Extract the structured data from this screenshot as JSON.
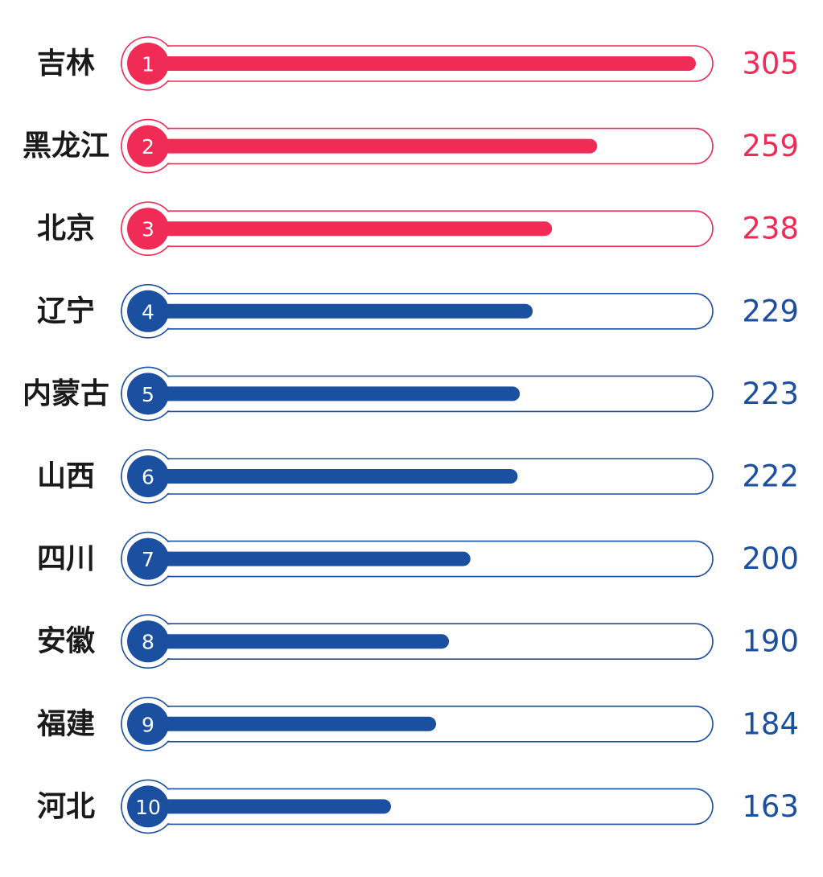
{
  "colors": {
    "top": "#ef2b56",
    "rest": "#1b4fa0"
  },
  "chart_data": {
    "type": "bar",
    "orientation": "horizontal",
    "title": "",
    "xlabel": "",
    "ylabel": "",
    "xlim": [
      0,
      330
    ],
    "grid": false,
    "legend": "none",
    "categories": [
      "吉林",
      "黑龙江",
      "北京",
      "辽宁",
      "内蒙古",
      "山西",
      "四川",
      "安徽",
      "福建",
      "河北"
    ],
    "ranks": [
      "1",
      "2",
      "3",
      "4",
      "5",
      "6",
      "7",
      "8",
      "9",
      "10"
    ],
    "values": [
      305,
      259,
      238,
      229,
      223,
      222,
      200,
      190,
      184,
      163
    ],
    "value_labels": [
      "305",
      "259",
      "238",
      "229",
      "223",
      "222",
      "200",
      "190",
      "184",
      "163"
    ],
    "highlight_top": 3
  }
}
